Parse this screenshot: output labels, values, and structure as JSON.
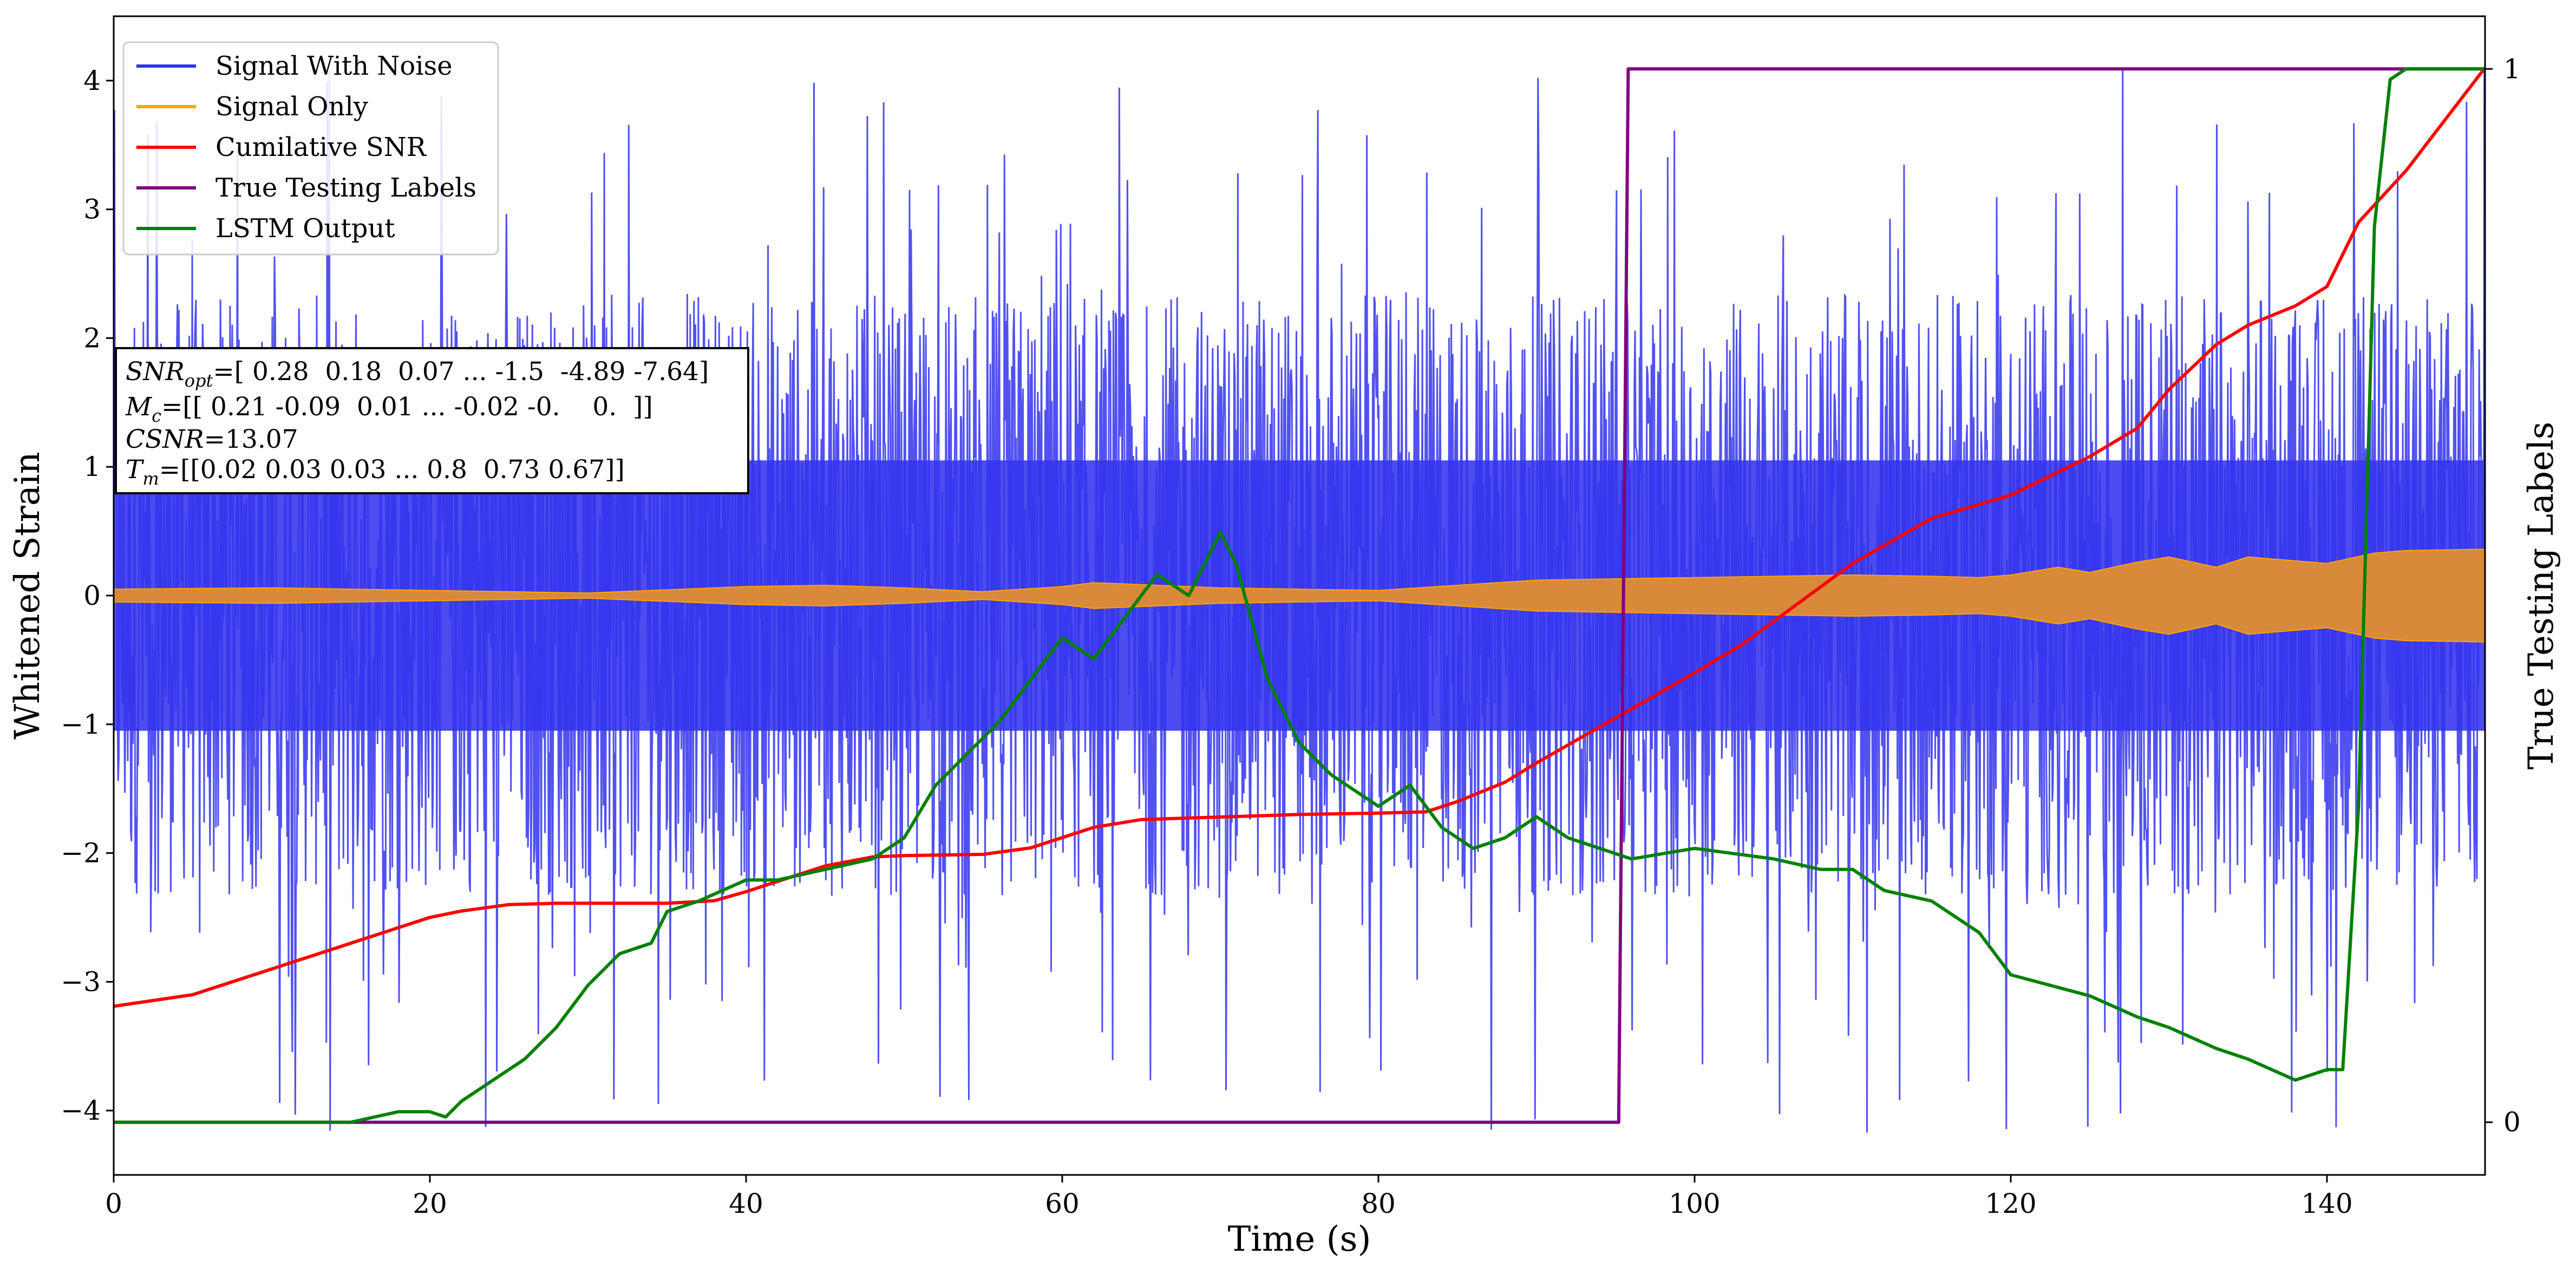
{
  "chart_data": {
    "type": "line",
    "xlabel": "Time (s)",
    "ylabel": "Whitened Strain",
    "y2label": "True Testing Labels",
    "xlim": [
      0,
      150
    ],
    "ylim": [
      -4.5,
      4.5
    ],
    "y2lim": [
      -0.05,
      1.05
    ],
    "xticks": [
      0,
      20,
      40,
      60,
      80,
      100,
      120,
      140
    ],
    "yticks": [
      -4,
      -3,
      -2,
      -1,
      0,
      1,
      2,
      3,
      4
    ],
    "y2ticks": [
      0,
      1
    ],
    "grid": false,
    "legend_position": "upper left",
    "series": [
      {
        "name": "Signal With Noise",
        "color": "#3333ee",
        "axis": "left",
        "description_values": "dense noisy strain, envelope roughly -2.5 to 2.5 with spikes to about +/-4",
        "approx_envelope": {
          "low": -2.5,
          "high": 2.6,
          "spike_max": 4.1,
          "spike_min": -4.2
        }
      },
      {
        "name": "Signal Only",
        "color": "#ffa500",
        "axis": "left",
        "amplitude_x": [
          0,
          10,
          20,
          30,
          40,
          45,
          50,
          55,
          60,
          62,
          70,
          80,
          85,
          90,
          100,
          110,
          115,
          118,
          120,
          123,
          125,
          128,
          130,
          133,
          135,
          140,
          143,
          145,
          150
        ],
        "amplitude_y": [
          0.05,
          0.06,
          0.04,
          0.02,
          0.07,
          0.08,
          0.06,
          0.03,
          0.07,
          0.1,
          0.06,
          0.04,
          0.08,
          0.12,
          0.14,
          0.16,
          0.15,
          0.14,
          0.16,
          0.22,
          0.18,
          0.26,
          0.3,
          0.22,
          0.3,
          0.25,
          0.33,
          0.35,
          0.36
        ]
      },
      {
        "name": "Cumilative SNR",
        "color": "#ff0000",
        "axis": "left",
        "x": [
          0,
          5,
          10,
          15,
          20,
          22,
          25,
          28,
          30,
          35,
          38,
          40,
          45,
          48,
          50,
          55,
          58,
          60,
          62,
          65,
          70,
          75,
          80,
          83,
          85,
          88,
          90,
          95,
          100,
          103,
          105,
          110,
          115,
          120,
          122,
          125,
          128,
          130,
          133,
          135,
          138,
          140,
          142,
          145,
          150
        ],
        "y": [
          -3.19,
          -3.1,
          -2.9,
          -2.7,
          -2.5,
          -2.45,
          -2.4,
          -2.39,
          -2.39,
          -2.39,
          -2.37,
          -2.3,
          -2.1,
          -2.03,
          -2.02,
          -2.01,
          -1.96,
          -1.88,
          -1.8,
          -1.74,
          -1.72,
          -1.7,
          -1.69,
          -1.68,
          -1.6,
          -1.45,
          -1.3,
          -0.95,
          -0.6,
          -0.38,
          -0.2,
          0.25,
          0.6,
          0.78,
          0.9,
          1.08,
          1.3,
          1.6,
          1.95,
          2.1,
          2.25,
          2.4,
          2.9,
          3.3,
          4.1
        ]
      },
      {
        "name": "True Testing Labels",
        "color": "#800080",
        "axis": "right",
        "x": [
          0,
          95.2,
          95.8,
          150
        ],
        "y": [
          0,
          0,
          1,
          1
        ]
      },
      {
        "name": "LSTM Output",
        "color": "#008000",
        "axis": "right",
        "x": [
          0,
          10,
          15,
          18,
          20,
          21,
          22,
          24,
          26,
          28,
          30,
          32,
          34,
          35,
          37,
          40,
          42,
          45,
          48,
          50,
          52,
          54,
          56,
          58,
          60,
          62,
          64,
          66,
          68,
          70,
          71,
          73,
          75,
          77,
          80,
          82,
          84,
          86,
          88,
          90,
          92,
          94,
          96,
          100,
          105,
          108,
          110,
          112,
          115,
          118,
          120,
          125,
          128,
          130,
          133,
          135,
          138,
          140,
          141,
          142,
          143,
          144,
          145,
          150
        ],
        "y": [
          0.0,
          0.0,
          0.0,
          0.01,
          0.01,
          0.005,
          0.02,
          0.04,
          0.06,
          0.09,
          0.13,
          0.16,
          0.17,
          0.2,
          0.21,
          0.23,
          0.23,
          0.24,
          0.25,
          0.27,
          0.32,
          0.35,
          0.38,
          0.42,
          0.46,
          0.44,
          0.48,
          0.52,
          0.5,
          0.56,
          0.53,
          0.42,
          0.36,
          0.33,
          0.3,
          0.32,
          0.28,
          0.26,
          0.27,
          0.29,
          0.27,
          0.26,
          0.25,
          0.26,
          0.25,
          0.24,
          0.24,
          0.22,
          0.21,
          0.18,
          0.14,
          0.12,
          0.1,
          0.09,
          0.07,
          0.06,
          0.04,
          0.05,
          0.05,
          0.3,
          0.85,
          0.99,
          1.0,
          1.0
        ]
      }
    ],
    "annotation_box": {
      "snr_label": "SNR",
      "snr_sub": "opt",
      "snr_value": "=[ 0.28  0.18  0.07 ... -1.5  -4.89 -7.64]",
      "mc_label": "M",
      "mc_sub": "c",
      "mc_value": "=[[ 0.21 -0.09  0.01 ... -0.02 -0.    0.  ]]",
      "csnr_label": "CSNR",
      "csnr_value": "=13.07",
      "tm_label": "T",
      "tm_sub": "m",
      "tm_value": "=[[0.02 0.03 0.03 ... 0.8  0.73 0.67]]"
    }
  }
}
